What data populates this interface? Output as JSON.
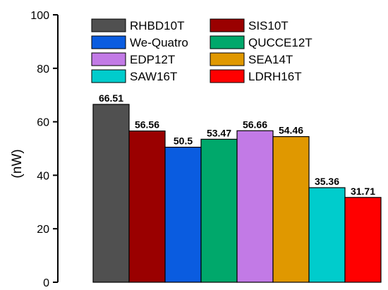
{
  "chart_data": {
    "type": "bar",
    "title": "",
    "xlabel": "",
    "ylabel": "(nW)",
    "ylim": [
      0,
      100
    ],
    "yticks": [
      0,
      20,
      40,
      60,
      80,
      100
    ],
    "grid": false,
    "legend_position": "top",
    "series": [
      {
        "name": "RHBD10T",
        "value": 66.51,
        "color": "#505050"
      },
      {
        "name": "SIS10T",
        "value": 56.56,
        "color": "#9a0000"
      },
      {
        "name": "We-Quatro",
        "value": 50.5,
        "color": "#0a5ce0"
      },
      {
        "name": "QUCCE12T",
        "value": 53.47,
        "color": "#00a86b"
      },
      {
        "name": "EDP12T",
        "value": 56.66,
        "color": "#c27ae6"
      },
      {
        "name": "SEA14T",
        "value": 54.46,
        "color": "#e09800"
      },
      {
        "name": "SAW16T",
        "value": 35.36,
        "color": "#00cccc"
      },
      {
        "name": "LDRH16T",
        "value": 31.71,
        "color": "#ff0000"
      }
    ],
    "data_labels": [
      "66.51",
      "56.56",
      "50.5",
      "53.47",
      "56.66",
      "54.46",
      "35.36",
      "31.71"
    ],
    "ytick_labels": [
      "0",
      "20",
      "40",
      "60",
      "80",
      "100"
    ]
  }
}
